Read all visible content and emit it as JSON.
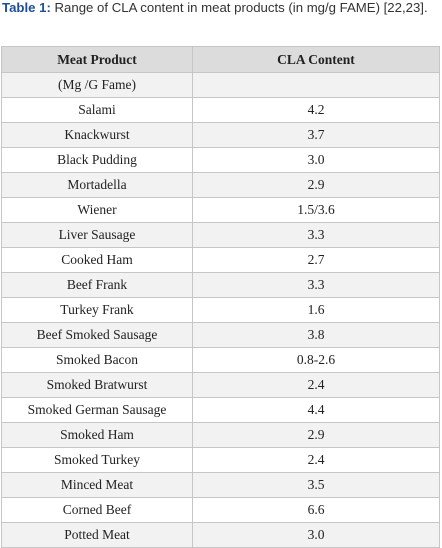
{
  "caption": {
    "label": "Table 1:",
    "text": " Range of CLA content in meat products (in mg/g FAME) [22,23]."
  },
  "table": {
    "headers": [
      "Meat Product",
      "CLA Content"
    ],
    "rows": [
      [
        "(Mg /G Fame)",
        ""
      ],
      [
        "Salami",
        "4.2"
      ],
      [
        "Knackwurst",
        "3.7"
      ],
      [
        "Black Pudding",
        "3.0"
      ],
      [
        "Mortadella",
        "2.9"
      ],
      [
        "Wiener",
        "1.5/3.6"
      ],
      [
        "Liver Sausage",
        "3.3"
      ],
      [
        "Cooked Ham",
        "2.7"
      ],
      [
        "Beef Frank",
        "3.3"
      ],
      [
        "Turkey Frank",
        "1.6"
      ],
      [
        "Beef Smoked Sausage",
        "3.8"
      ],
      [
        "Smoked Bacon",
        "0.8-2.6"
      ],
      [
        "Smoked Bratwurst",
        "2.4"
      ],
      [
        "Smoked German Sausage",
        "4.4"
      ],
      [
        "Smoked Ham",
        "2.9"
      ],
      [
        "Smoked Turkey",
        "2.4"
      ],
      [
        "Minced Meat",
        "3.5"
      ],
      [
        "Corned Beef",
        "6.6"
      ],
      [
        "Potted Meat",
        "3.0"
      ]
    ]
  }
}
